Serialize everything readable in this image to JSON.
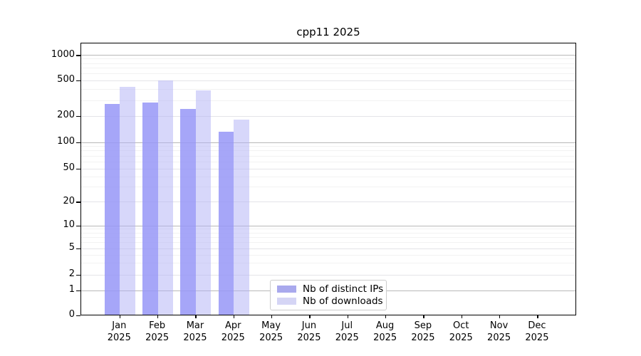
{
  "title": "cpp11 2025",
  "chart_data": {
    "type": "bar",
    "title": "cpp11 2025",
    "months": [
      "Jan",
      "Feb",
      "Mar",
      "Apr",
      "May",
      "Jun",
      "Jul",
      "Aug",
      "Sep",
      "Oct",
      "Nov",
      "Dec"
    ],
    "year": "2025",
    "series": [
      {
        "name": "Nb of distinct IPs",
        "color": "#a6a6f0",
        "values": [
          275,
          290,
          245,
          135,
          null,
          null,
          null,
          null,
          null,
          null,
          null,
          null
        ]
      },
      {
        "name": "Nb of downloads",
        "color": "#d8d8f8",
        "values": [
          430,
          505,
          395,
          185,
          null,
          null,
          null,
          null,
          null,
          null,
          null,
          null
        ]
      }
    ],
    "y_ticks": [
      0,
      1,
      2,
      5,
      10,
      20,
      50,
      100,
      200,
      500,
      1000
    ],
    "y_minor_gridlines": [
      3,
      4,
      6,
      7,
      8,
      9,
      30,
      40,
      60,
      70,
      80,
      90,
      300,
      400,
      600,
      700,
      800,
      900
    ],
    "y_mid_gridlines": [
      2,
      5,
      20,
      50,
      200,
      500
    ],
    "y_decade_gridlines": [
      1,
      10,
      100,
      1000
    ],
    "y_scale": "symlog",
    "ylim": [
      0,
      1400
    ],
    "grid": true,
    "legend_position": "lower-center",
    "colors": {
      "bar_distinct_ips": "#a6a6f0",
      "bar_downloads": "#d8d8f8",
      "grid_major": "#b8b8b8",
      "grid_minor": "#f2f2f2",
      "spine": "#000000"
    }
  }
}
